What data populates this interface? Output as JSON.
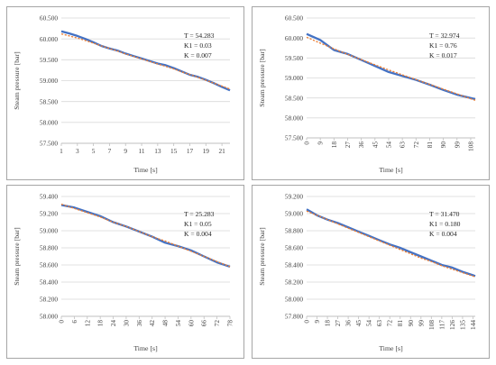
{
  "colors": {
    "measured": "#4472c4",
    "model": "#ed7d31",
    "grid": "#d9d9d9",
    "axis": "#bfbfbf"
  },
  "chart_data": [
    {
      "type": "line",
      "xlabel": "Time [s]",
      "ylabel": "Steam pressure [bar]",
      "ylim": [
        57.5,
        60.5
      ],
      "yticks": [
        "60.500",
        "60.000",
        "59.500",
        "59.000",
        "58.500",
        "58.000",
        "57.500"
      ],
      "xlim": [
        1,
        22
      ],
      "xticks": [
        "1",
        "3",
        "5",
        "7",
        "9",
        "11",
        "13",
        "15",
        "17",
        "19",
        "21"
      ],
      "xtick_rotated": false,
      "annotation": [
        "T = 54.283",
        "K1 = 0.03",
        "K = 0.007"
      ],
      "series": [
        {
          "role": "measured",
          "x": [
            1,
            2,
            3,
            4,
            5,
            6,
            7,
            8,
            9,
            10,
            11,
            12,
            13,
            14,
            15,
            16,
            17,
            18,
            19,
            20,
            21,
            22
          ],
          "y": [
            60.18,
            60.13,
            60.07,
            60.0,
            59.92,
            59.83,
            59.77,
            59.72,
            59.65,
            59.59,
            59.53,
            59.47,
            59.41,
            59.37,
            59.3,
            59.22,
            59.14,
            59.09,
            59.02,
            58.94,
            58.85,
            58.77
          ]
        },
        {
          "role": "model",
          "x": [
            1,
            2,
            3,
            4,
            5,
            6,
            7,
            8,
            9,
            10,
            11,
            12,
            13,
            14,
            15,
            16,
            17,
            18,
            19,
            20,
            21,
            22
          ],
          "y": [
            60.12,
            60.07,
            60.02,
            59.96,
            59.9,
            59.83,
            59.77,
            59.71,
            59.64,
            59.58,
            59.52,
            59.46,
            59.4,
            59.34,
            59.28,
            59.21,
            59.15,
            59.08,
            59.01,
            58.94,
            58.87,
            58.8
          ]
        }
      ]
    },
    {
      "type": "line",
      "xlabel": "Time [s]",
      "ylabel": "Steam pressure [bar]",
      "ylim": [
        57.5,
        60.5
      ],
      "yticks": [
        "60.500",
        "60.000",
        "59.500",
        "59.000",
        "58.500",
        "58.000",
        "57.500"
      ],
      "xlim": [
        0,
        111
      ],
      "xticks": [
        "0",
        "9",
        "18",
        "27",
        "36",
        "45",
        "54",
        "63",
        "72",
        "81",
        "90",
        "99",
        "108"
      ],
      "xtick_rotated": true,
      "annotation": [
        "T = 32.974",
        "K1 = 0.76",
        "K = 0.017"
      ],
      "series": [
        {
          "role": "measured",
          "x": [
            0,
            9,
            18,
            27,
            36,
            45,
            54,
            63,
            72,
            81,
            90,
            99,
            108,
            111
          ],
          "y": [
            60.1,
            59.95,
            59.7,
            59.6,
            59.45,
            59.3,
            59.15,
            59.05,
            58.95,
            58.83,
            58.7,
            58.58,
            58.5,
            58.47
          ]
        },
        {
          "role": "model",
          "x": [
            0,
            9,
            18,
            27,
            36,
            45,
            54,
            63,
            72,
            81,
            90,
            99,
            108,
            111
          ],
          "y": [
            60.02,
            59.87,
            59.73,
            59.59,
            59.46,
            59.33,
            59.2,
            59.08,
            58.96,
            58.84,
            58.72,
            58.6,
            58.48,
            58.44
          ]
        }
      ]
    },
    {
      "type": "line",
      "xlabel": "Time [s]",
      "ylabel": "Steam pressure [bar]",
      "ylim": [
        58.0,
        59.4
      ],
      "yticks": [
        "59.400",
        "59.200",
        "59.000",
        "58.800",
        "58.600",
        "58.400",
        "58.200",
        "58.000"
      ],
      "xlim": [
        0,
        78
      ],
      "xticks": [
        "0",
        "6",
        "12",
        "18",
        "24",
        "30",
        "36",
        "42",
        "48",
        "54",
        "60",
        "66",
        "72",
        "78"
      ],
      "xtick_rotated": true,
      "annotation": [
        "T = 25.283",
        "K1 = 0.05",
        "K = 0.004"
      ],
      "series": [
        {
          "role": "measured",
          "x": [
            0,
            6,
            12,
            18,
            24,
            30,
            36,
            42,
            48,
            54,
            60,
            66,
            72,
            78
          ],
          "y": [
            59.3,
            59.27,
            59.22,
            59.17,
            59.1,
            59.05,
            58.99,
            58.93,
            58.86,
            58.82,
            58.77,
            58.7,
            58.63,
            58.58
          ]
        },
        {
          "role": "model",
          "x": [
            0,
            6,
            12,
            18,
            24,
            30,
            36,
            42,
            48,
            54,
            60,
            66,
            72,
            78
          ],
          "y": [
            59.31,
            59.26,
            59.21,
            59.16,
            59.1,
            59.05,
            58.99,
            58.93,
            58.88,
            58.82,
            58.76,
            58.7,
            58.64,
            58.58
          ]
        }
      ]
    },
    {
      "type": "line",
      "xlabel": "Time [s]",
      "ylabel": "Steam pressure [bar]",
      "ylim": [
        57.8,
        59.2
      ],
      "yticks": [
        "59.200",
        "59.000",
        "58.800",
        "58.600",
        "58.400",
        "58.200",
        "58.000",
        "57.800"
      ],
      "xlim": [
        0,
        146
      ],
      "xticks": [
        "0",
        "9",
        "18",
        "27",
        "36",
        "45",
        "54",
        "63",
        "72",
        "81",
        "90",
        "99",
        "108",
        "117",
        "126",
        "135",
        "144"
      ],
      "xtick_rotated": true,
      "annotation": [
        "T = 31.470",
        "K1 = 0.180",
        "K = 0.004"
      ],
      "series": [
        {
          "role": "measured",
          "x": [
            0,
            9,
            18,
            27,
            36,
            45,
            54,
            63,
            72,
            81,
            90,
            99,
            108,
            117,
            126,
            135,
            144,
            146
          ],
          "y": [
            59.05,
            58.98,
            58.93,
            58.89,
            58.84,
            58.79,
            58.74,
            58.69,
            58.64,
            58.6,
            58.55,
            58.5,
            58.45,
            58.4,
            58.37,
            58.32,
            58.28,
            58.27
          ]
        },
        {
          "role": "model",
          "x": [
            0,
            9,
            18,
            27,
            36,
            45,
            54,
            63,
            72,
            81,
            90,
            99,
            108,
            117,
            126,
            135,
            144,
            146
          ],
          "y": [
            59.03,
            58.98,
            58.93,
            58.88,
            58.83,
            58.78,
            58.73,
            58.68,
            58.63,
            58.58,
            58.53,
            58.48,
            58.44,
            58.39,
            58.35,
            58.31,
            58.27,
            58.26
          ]
        }
      ]
    }
  ]
}
